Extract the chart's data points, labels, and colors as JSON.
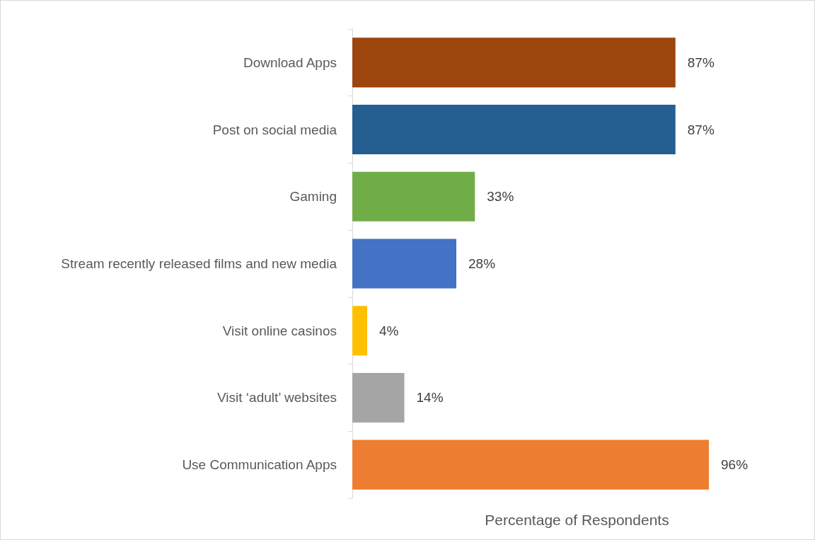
{
  "chart_data": {
    "type": "bar",
    "orientation": "horizontal",
    "xlabel": "Percentage of Respondents",
    "categories": [
      "Download Apps",
      "Post on social media",
      "Gaming",
      "Stream recently released films and new media",
      "Visit online casinos",
      "Visit ‘adult’ websites",
      "Use Communication Apps"
    ],
    "values": [
      87,
      87,
      33,
      28,
      4,
      14,
      96
    ],
    "colors": [
      "#9c450d",
      "#255e91",
      "#70ad47",
      "#4472c4",
      "#ffc000",
      "#a5a5a5",
      "#ed7d31"
    ],
    "value_labels": [
      "87%",
      "87%",
      "33%",
      "28%",
      "4%",
      "14%",
      "96%"
    ],
    "grid": false
  }
}
